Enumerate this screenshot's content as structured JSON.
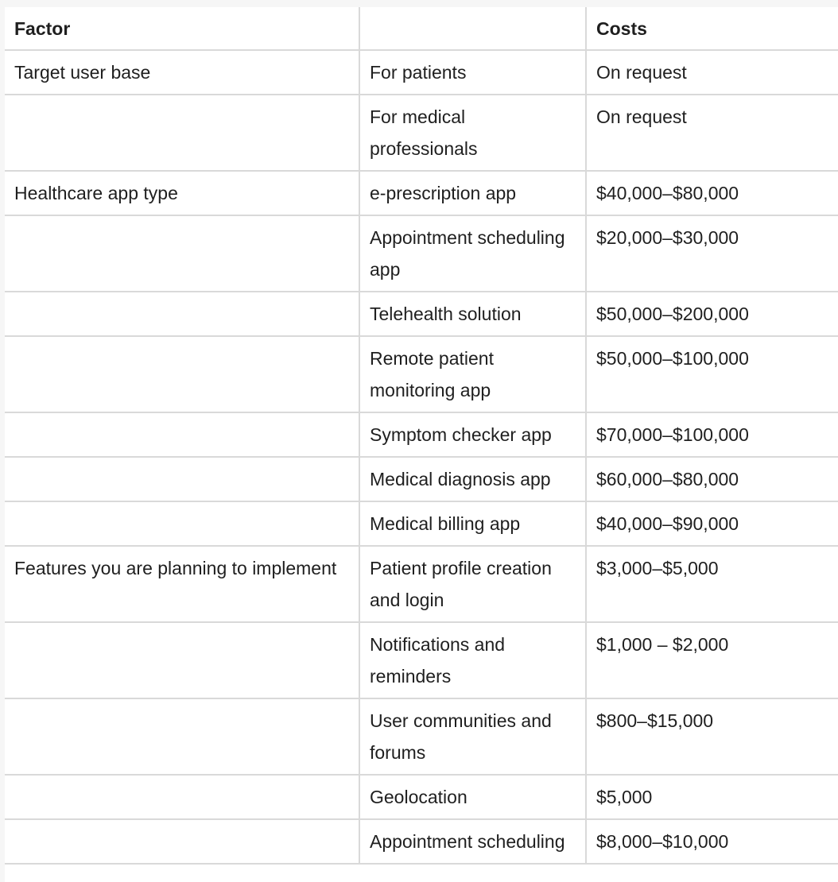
{
  "table": {
    "headers": [
      "Factor",
      "",
      "Costs"
    ],
    "rows": [
      {
        "factor": "Target user base",
        "item": "For patients",
        "cost": "On request"
      },
      {
        "factor": "",
        "item": "For medical professionals",
        "cost": "On request"
      },
      {
        "factor": "Healthcare app type",
        "item": "e-prescription app",
        "cost": "$40,000–$80,000"
      },
      {
        "factor": "",
        "item": "Appointment scheduling app",
        "cost": "$20,000–$30,000"
      },
      {
        "factor": "",
        "item": "Telehealth solution",
        "cost": "$50,000–$200,000"
      },
      {
        "factor": "",
        "item": "Remote patient monitoring app",
        "cost": "$50,000–$100,000"
      },
      {
        "factor": "",
        "item": "Symptom checker app",
        "cost": "$70,000–$100,000"
      },
      {
        "factor": "",
        "item": "Medical diagnosis app",
        "cost": "$60,000–$80,000"
      },
      {
        "factor": "",
        "item": "Medical billing app",
        "cost": "$40,000–$90,000"
      },
      {
        "factor": "Features you are planning to implement",
        "item": "Patient profile creation and login",
        "cost": "$3,000–$5,000"
      },
      {
        "factor": "",
        "item": "Notifications and reminders",
        "cost": "$1,000 – $2,000"
      },
      {
        "factor": "",
        "item": "User communities and forums",
        "cost": "$800–$15,000"
      },
      {
        "factor": "",
        "item": "Geolocation",
        "cost": "$5,000"
      },
      {
        "factor": "",
        "item": "Appointment scheduling",
        "cost": "$8,000–$10,000"
      }
    ]
  }
}
